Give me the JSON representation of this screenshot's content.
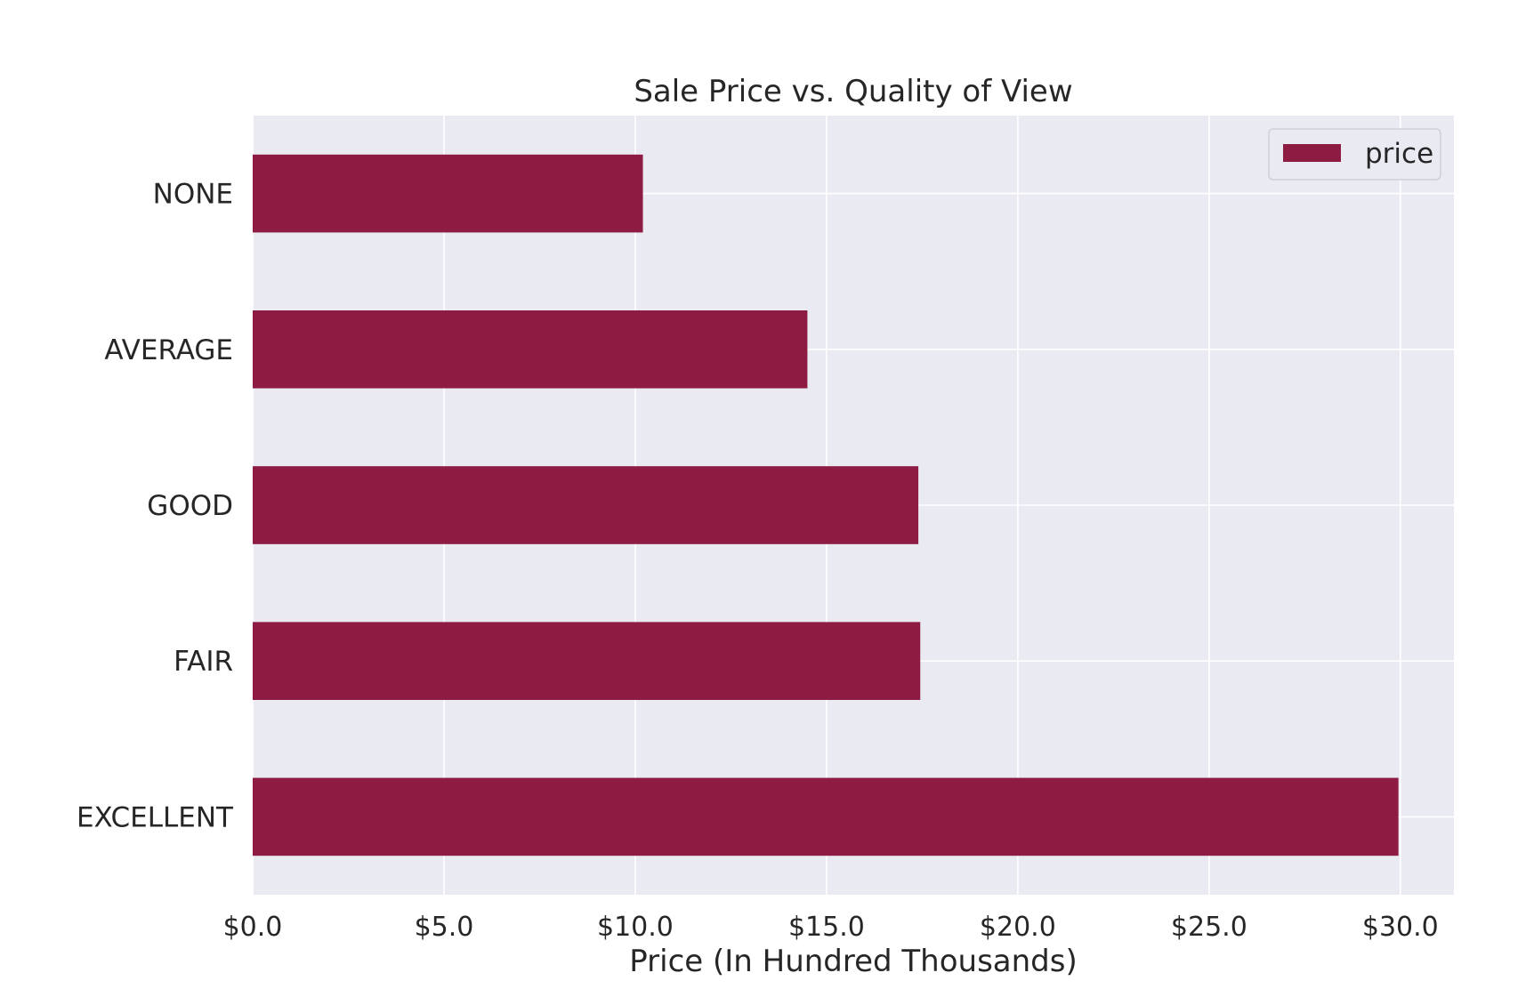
{
  "chart_data": {
    "type": "bar",
    "orientation": "horizontal",
    "title": "Sale Price vs. Quality of View",
    "xlabel": "Price (In Hundred Thousands)",
    "ylabel": "",
    "categories": [
      "NONE",
      "AVERAGE",
      "GOOD",
      "FAIR",
      "EXCELLENT"
    ],
    "series": [
      {
        "name": "price",
        "values": [
          10.2,
          14.5,
          17.4,
          17.45,
          29.95
        ]
      }
    ],
    "xlim": [
      0,
      31.4
    ],
    "xticks": [
      0,
      5,
      10,
      15,
      20,
      25,
      30
    ],
    "xtick_labels": [
      "$0.0",
      "$5.0",
      "$10.0",
      "$15.0",
      "$20.0",
      "$25.0",
      "$30.0"
    ],
    "grid": true,
    "legend_position": "top-right",
    "colors": {
      "bar": "#8e1c42",
      "plot_bg": "#eaeaf2",
      "grid": "#ffffff",
      "text": "#262626"
    }
  }
}
